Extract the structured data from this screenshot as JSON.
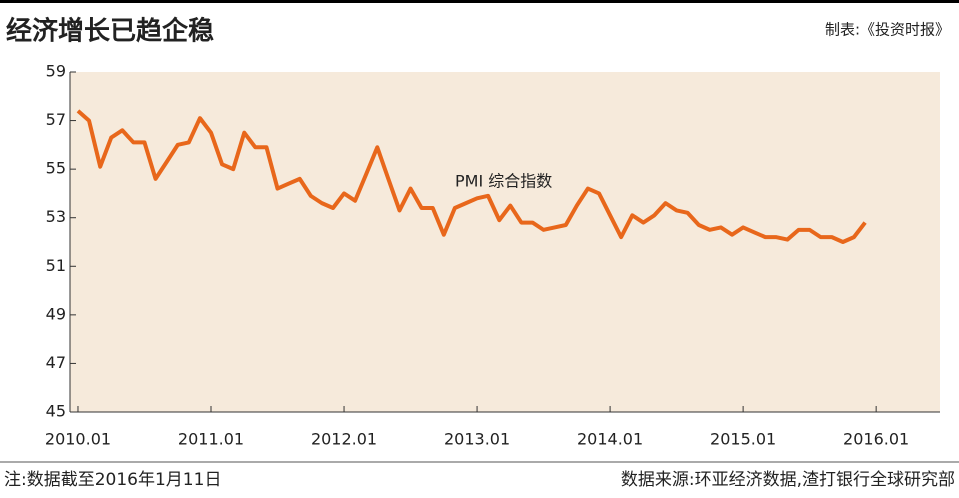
{
  "chart_data": {
    "type": "line",
    "title": "经济增长已趋企稳",
    "credit": "制表:《投资时报》",
    "annotation": "PMI 综合指数",
    "note": "注:数据截至2016年1月11日",
    "source": "数据来源:环亚经济数据,渣打银行全球研究部",
    "x": [
      2010,
      2010.083,
      2010.167,
      2010.25,
      2010.333,
      2010.417,
      2010.5,
      2010.583,
      2010.667,
      2010.75,
      2010.833,
      2010.917,
      2011,
      2011.083,
      2011.167,
      2011.25,
      2011.333,
      2011.417,
      2011.5,
      2011.583,
      2011.667,
      2011.75,
      2011.833,
      2011.917,
      2012,
      2012.083,
      2012.167,
      2012.25,
      2012.333,
      2012.417,
      2012.5,
      2012.583,
      2012.667,
      2012.75,
      2012.833,
      2012.917,
      2013,
      2013.083,
      2013.167,
      2013.25,
      2013.333,
      2013.417,
      2013.5,
      2013.583,
      2013.667,
      2013.75,
      2013.833,
      2013.917,
      2014,
      2014.083,
      2014.167,
      2014.25,
      2014.333,
      2014.417,
      2014.5,
      2014.583,
      2014.667,
      2014.75,
      2014.833,
      2014.917,
      2015,
      2015.083,
      2015.167,
      2015.25,
      2015.333,
      2015.417,
      2015.5,
      2015.583,
      2015.667,
      2015.75,
      2015.833,
      2015.917
    ],
    "series": [
      {
        "name": "PMI",
        "color": "#e8671b",
        "values": [
          57.4,
          57.0,
          55.1,
          56.3,
          56.6,
          56.1,
          56.1,
          54.6,
          55.3,
          56.0,
          56.1,
          57.1,
          56.5,
          55.2,
          55.0,
          56.5,
          55.9,
          55.9,
          54.2,
          54.4,
          54.6,
          53.9,
          53.6,
          53.4,
          54.0,
          53.7,
          54.8,
          55.9,
          54.6,
          53.3,
          54.2,
          53.4,
          53.4,
          52.3,
          53.4,
          53.6,
          53.8,
          53.9,
          52.9,
          53.5,
          52.8,
          52.8,
          52.5,
          52.6,
          52.7,
          53.5,
          54.2,
          54.0,
          53.1,
          52.2,
          53.1,
          52.8,
          53.1,
          53.6,
          53.3,
          53.2,
          52.7,
          52.5,
          52.6,
          52.3,
          52.6,
          52.4,
          52.2,
          52.2,
          52.1,
          52.5,
          52.5,
          52.2,
          52.2,
          52.0,
          52.2,
          52.8
        ]
      }
    ],
    "xlim": [
      2009.94,
      2016.48
    ],
    "xticks": [
      {
        "value": 2010,
        "label": "2010.01"
      },
      {
        "value": 2011,
        "label": "2011.01"
      },
      {
        "value": 2012,
        "label": "2012.01"
      },
      {
        "value": 2013,
        "label": "2013.01"
      },
      {
        "value": 2014,
        "label": "2014.01"
      },
      {
        "value": 2015,
        "label": "2015.01"
      },
      {
        "value": 2016,
        "label": "2016.01"
      }
    ],
    "ylim": [
      45,
      59
    ],
    "yticks": [
      45,
      47,
      49,
      51,
      53,
      55,
      57,
      59
    ],
    "plot_background": "#f6eadb"
  }
}
